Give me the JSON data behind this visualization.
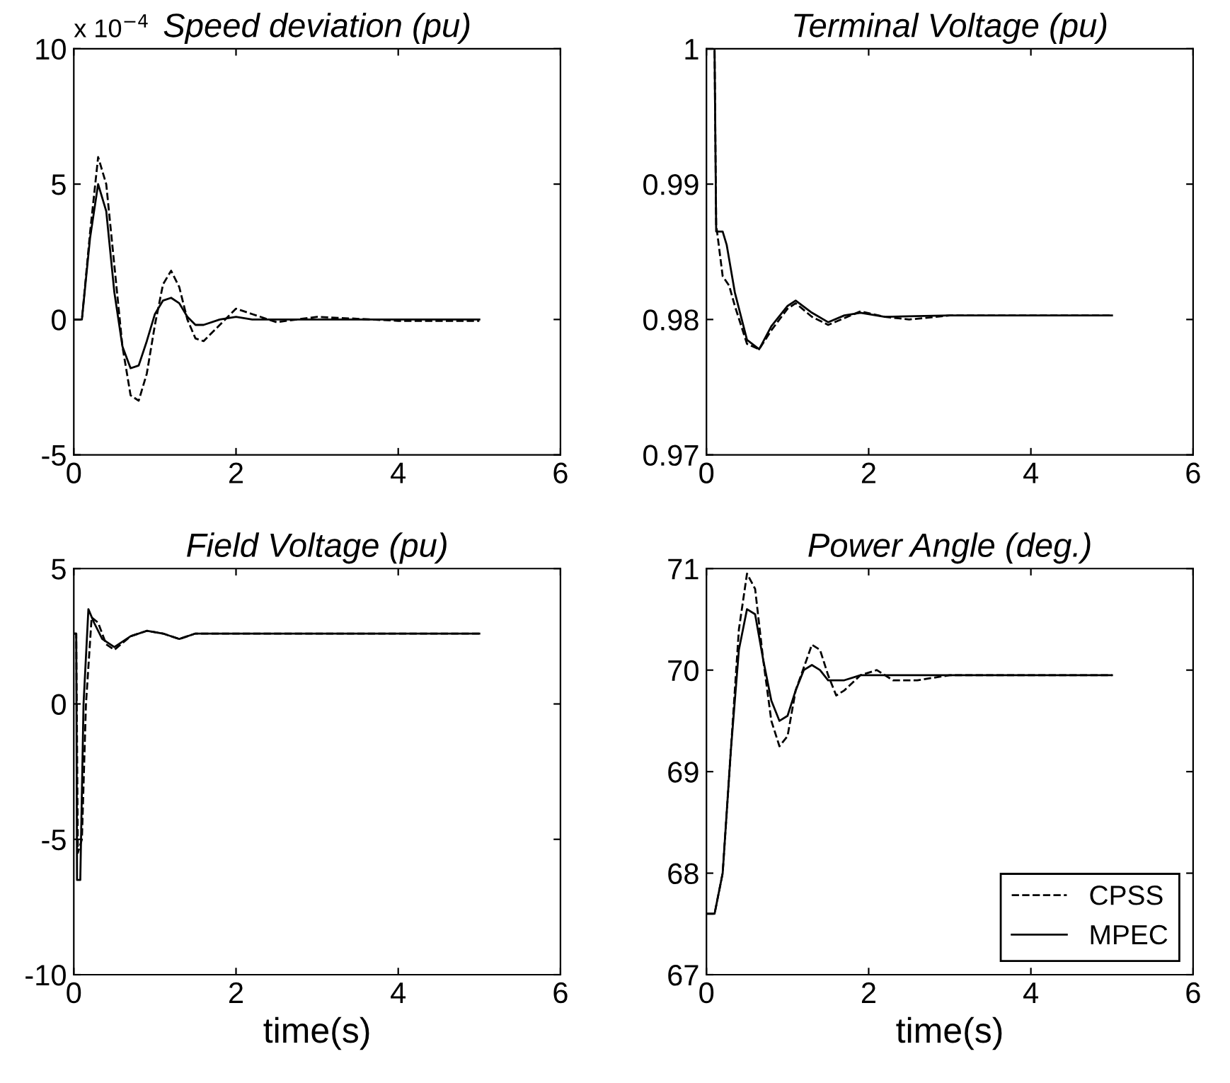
{
  "chart_data": [
    {
      "type": "line",
      "title": "Speed deviation (pu)",
      "annotations": [
        "x 10$^{−4}$"
      ],
      "xlim": [
        0,
        6
      ],
      "xticks": [
        0,
        2,
        4,
        6
      ],
      "ylim": [
        -5,
        10
      ],
      "yticks": [
        -5,
        0,
        5,
        10
      ],
      "grid": false,
      "legend": false,
      "series": [
        {
          "color": "#000000",
          "line_style": "dashed",
          "x": [
            0,
            0.1,
            0.2,
            0.3,
            0.4,
            0.5,
            0.6,
            0.7,
            0.8,
            0.9,
            1.0,
            1.1,
            1.2,
            1.3,
            1.4,
            1.5,
            1.6,
            1.8,
            2.0,
            2.2,
            2.5,
            3,
            4,
            5
          ],
          "values": [
            0,
            0,
            3.2,
            6,
            5,
            2,
            -1,
            -2.8,
            -3,
            -2,
            -0.2,
            1.3,
            1.8,
            1.2,
            0,
            -0.7,
            -0.8,
            -0.2,
            0.4,
            0.2,
            -0.1,
            0.1,
            -0.05,
            -0.05
          ]
        },
        {
          "color": "#000000",
          "line_style": "solid",
          "x": [
            0,
            0.1,
            0.2,
            0.3,
            0.4,
            0.5,
            0.6,
            0.7,
            0.8,
            0.9,
            1.0,
            1.1,
            1.2,
            1.3,
            1.4,
            1.5,
            1.6,
            1.8,
            2.0,
            2.2,
            2.5,
            3,
            4,
            5
          ],
          "values": [
            0,
            0,
            3,
            5,
            4,
            1,
            -1,
            -1.8,
            -1.7,
            -0.8,
            0.2,
            0.7,
            0.8,
            0.6,
            0.1,
            -0.2,
            -0.2,
            0,
            0.1,
            0,
            0,
            0,
            0,
            0
          ]
        }
      ]
    },
    {
      "type": "line",
      "title": "Terminal Voltage (pu)",
      "xlim": [
        0,
        6
      ],
      "xticks": [
        0,
        2,
        4,
        6
      ],
      "ylim": [
        0.97,
        1
      ],
      "yticks": [
        0.97,
        0.98,
        0.99,
        1
      ],
      "grid": false,
      "legend": false,
      "series": [
        {
          "color": "#000000",
          "line_style": "dashed",
          "x": [
            0,
            0.1,
            0.12,
            0.2,
            0.28,
            0.35,
            0.5,
            0.65,
            0.8,
            1.0,
            1.1,
            1.3,
            1.5,
            1.7,
            1.9,
            2.2,
            2.5,
            3,
            5
          ],
          "values": [
            1,
            1,
            0.987,
            0.9832,
            0.9825,
            0.981,
            0.9782,
            0.9778,
            0.9792,
            0.9808,
            0.9812,
            0.9802,
            0.9796,
            0.9801,
            0.9806,
            0.9802,
            0.98,
            0.9803,
            0.9803
          ]
        },
        {
          "color": "#000000",
          "line_style": "solid",
          "x": [
            0,
            0.1,
            0.12,
            0.2,
            0.25,
            0.35,
            0.5,
            0.65,
            0.8,
            1.0,
            1.1,
            1.3,
            1.5,
            1.7,
            1.9,
            2.2,
            3,
            5
          ],
          "values": [
            1,
            1,
            0.9865,
            0.9865,
            0.9855,
            0.982,
            0.9785,
            0.9778,
            0.9795,
            0.981,
            0.9814,
            0.9805,
            0.9798,
            0.9803,
            0.9805,
            0.9802,
            0.9803,
            0.9803
          ]
        }
      ]
    },
    {
      "type": "line",
      "title": "Field Voltage (pu)",
      "xlabel": "time(s)",
      "xlim": [
        0,
        6
      ],
      "xticks": [
        0,
        2,
        4,
        6
      ],
      "ylim": [
        -10,
        5
      ],
      "yticks": [
        -10,
        -5,
        0,
        5
      ],
      "grid": false,
      "legend": false,
      "series": [
        {
          "color": "#000000",
          "line_style": "dashed",
          "x": [
            0,
            0.03,
            0.05,
            0.1,
            0.15,
            0.22,
            0.3,
            0.4,
            0.5,
            0.7,
            0.9,
            1.1,
            1.3,
            1.5,
            2,
            5
          ],
          "values": [
            2.6,
            2.6,
            -5.5,
            -5,
            0,
            3.2,
            3.0,
            2.2,
            2.0,
            2.5,
            2.7,
            2.6,
            2.4,
            2.6,
            2.6,
            2.6
          ]
        },
        {
          "color": "#000000",
          "line_style": "solid",
          "x": [
            0,
            0.03,
            0.04,
            0.08,
            0.12,
            0.18,
            0.25,
            0.35,
            0.5,
            0.7,
            0.9,
            1.1,
            1.3,
            1.5,
            2,
            5
          ],
          "values": [
            2.6,
            2.6,
            -6.5,
            -6.5,
            0,
            3.5,
            3,
            2.4,
            2.1,
            2.5,
            2.7,
            2.6,
            2.4,
            2.6,
            2.6,
            2.6
          ]
        }
      ]
    },
    {
      "type": "line",
      "title": "Power Angle (deg.)",
      "xlabel": "time(s)",
      "xlim": [
        0,
        6
      ],
      "xticks": [
        0,
        2,
        4,
        6
      ],
      "ylim": [
        67,
        71
      ],
      "yticks": [
        67,
        68,
        69,
        70,
        71
      ],
      "grid": false,
      "legend": "bottom right",
      "series": [
        {
          "name": "CPSS",
          "color": "#000000",
          "line_style": "dashed",
          "x": [
            0,
            0.1,
            0.2,
            0.3,
            0.4,
            0.5,
            0.6,
            0.7,
            0.8,
            0.9,
            1.0,
            1.1,
            1.3,
            1.4,
            1.5,
            1.6,
            1.7,
            1.9,
            2.1,
            2.3,
            2.6,
            3,
            5
          ],
          "values": [
            67.6,
            67.6,
            68.0,
            69.2,
            70.4,
            70.95,
            70.8,
            70.1,
            69.5,
            69.25,
            69.35,
            69.8,
            70.25,
            70.2,
            69.95,
            69.75,
            69.8,
            69.95,
            70.0,
            69.9,
            69.9,
            69.95,
            69.95
          ]
        },
        {
          "name": "MPEC",
          "color": "#000000",
          "line_style": "solid",
          "x": [
            0,
            0.1,
            0.2,
            0.3,
            0.4,
            0.5,
            0.6,
            0.7,
            0.8,
            0.9,
            1.0,
            1.1,
            1.2,
            1.3,
            1.4,
            1.5,
            1.7,
            1.9,
            2.2,
            3,
            5
          ],
          "values": [
            67.6,
            67.6,
            68.0,
            69.2,
            70.2,
            70.6,
            70.55,
            70.1,
            69.7,
            69.5,
            69.55,
            69.8,
            70.0,
            70.05,
            70.0,
            69.9,
            69.9,
            69.95,
            69.95,
            69.95,
            69.95
          ]
        }
      ]
    }
  ]
}
